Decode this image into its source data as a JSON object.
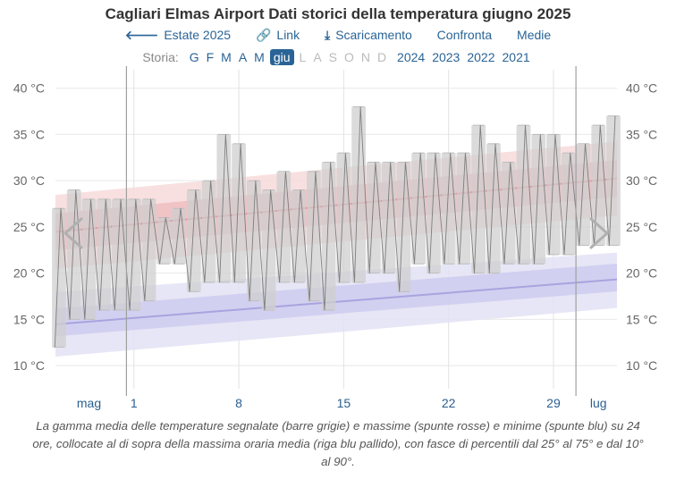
{
  "title": "Cagliari Elmas Airport Dati storici della temperatura giugno 2025",
  "toolbar": {
    "items": [
      {
        "icon": "arrow-left-icon",
        "glyph": "🡐",
        "label": "Estate 2025"
      },
      {
        "icon": "link-icon",
        "glyph": "🔗",
        "label": "Link"
      },
      {
        "icon": "download-icon",
        "glyph": "⤓",
        "label": "Scaricamento"
      },
      {
        "icon": "",
        "glyph": "",
        "label": "Confronta"
      },
      {
        "icon": "",
        "glyph": "",
        "label": "Medie"
      }
    ]
  },
  "history": {
    "label": "Storia:",
    "months": [
      {
        "label": "G",
        "state": "enabled"
      },
      {
        "label": "F",
        "state": "enabled"
      },
      {
        "label": "M",
        "state": "enabled"
      },
      {
        "label": "A",
        "state": "enabled"
      },
      {
        "label": "M",
        "state": "enabled"
      },
      {
        "label": "giu",
        "state": "active"
      },
      {
        "label": "L",
        "state": "disabled"
      },
      {
        "label": "A",
        "state": "disabled"
      },
      {
        "label": "S",
        "state": "disabled"
      },
      {
        "label": "O",
        "state": "disabled"
      },
      {
        "label": "N",
        "state": "disabled"
      },
      {
        "label": "D",
        "state": "disabled"
      }
    ],
    "years": [
      "2024",
      "2023",
      "2022",
      "2021"
    ]
  },
  "nav": {
    "prev_icon": "chevron-left-icon",
    "next_icon": "chevron-right-icon"
  },
  "caption": "La gamma media delle temperature segnalate (barre grigie) e massime (spunte rosse) e minime (spunte blu) su 24 ore, collocate al di sopra della massima oraria media (riga blu pallido), con fasce di percentili dal 25° al 75° e dal 10° al 90°.",
  "chart_data": {
    "type": "bar",
    "y_ticks": [
      "10 °C",
      "15 °C",
      "20 °C",
      "25 °C",
      "30 °C",
      "35 °C",
      "40 °C"
    ],
    "y_tick_values": [
      10,
      15,
      20,
      25,
      30,
      35,
      40
    ],
    "ylim": [
      7.5,
      42
    ],
    "x_range": [
      "2025-05-27",
      "2025-07-03"
    ],
    "x_ticks": [
      {
        "label": "mag",
        "date": "2025-05-29"
      },
      {
        "label": "1",
        "date": "2025-06-01"
      },
      {
        "label": "8",
        "date": "2025-06-08"
      },
      {
        "label": "15",
        "date": "2025-06-15"
      },
      {
        "label": "22",
        "date": "2025-06-22"
      },
      {
        "label": "29",
        "date": "2025-06-29"
      },
      {
        "label": "lug",
        "date": "2025-07-02"
      }
    ],
    "month_boundaries": [
      "2025-06-01",
      "2025-07-01"
    ],
    "grid": true,
    "daily_ranges": [
      {
        "date": "2025-05-27",
        "min": 12,
        "max": 27
      },
      {
        "date": "2025-05-28",
        "min": 15,
        "max": 29
      },
      {
        "date": "2025-05-29",
        "min": 15,
        "max": 28
      },
      {
        "date": "2025-05-30",
        "min": 16,
        "max": 28
      },
      {
        "date": "2025-05-31",
        "min": 16,
        "max": 28
      },
      {
        "date": "2025-06-01",
        "min": 16,
        "max": 28
      },
      {
        "date": "2025-06-02",
        "min": 17,
        "max": 28
      },
      {
        "date": "2025-06-03",
        "min": 21,
        "max": 26
      },
      {
        "date": "2025-06-04",
        "min": 21,
        "max": 27
      },
      {
        "date": "2025-06-05",
        "min": 18,
        "max": 29
      },
      {
        "date": "2025-06-06",
        "min": 19,
        "max": 30
      },
      {
        "date": "2025-06-07",
        "min": 19,
        "max": 35
      },
      {
        "date": "2025-06-08",
        "min": 19,
        "max": 34
      },
      {
        "date": "2025-06-09",
        "min": 17,
        "max": 30
      },
      {
        "date": "2025-06-10",
        "min": 16,
        "max": 29
      },
      {
        "date": "2025-06-11",
        "min": 19,
        "max": 31
      },
      {
        "date": "2025-06-12",
        "min": 19,
        "max": 29
      },
      {
        "date": "2025-06-13",
        "min": 17,
        "max": 31
      },
      {
        "date": "2025-06-14",
        "min": 16,
        "max": 32
      },
      {
        "date": "2025-06-15",
        "min": 19,
        "max": 33
      },
      {
        "date": "2025-06-16",
        "min": 19,
        "max": 38
      },
      {
        "date": "2025-06-17",
        "min": 20,
        "max": 32
      },
      {
        "date": "2025-06-18",
        "min": 20,
        "max": 32
      },
      {
        "date": "2025-06-19",
        "min": 18,
        "max": 32
      },
      {
        "date": "2025-06-20",
        "min": 21,
        "max": 33
      },
      {
        "date": "2025-06-21",
        "min": 20,
        "max": 33
      },
      {
        "date": "2025-06-22",
        "min": 21,
        "max": 33
      },
      {
        "date": "2025-06-23",
        "min": 21,
        "max": 33
      },
      {
        "date": "2025-06-24",
        "min": 20,
        "max": 36
      },
      {
        "date": "2025-06-25",
        "min": 20,
        "max": 34
      },
      {
        "date": "2025-06-26",
        "min": 21,
        "max": 32
      },
      {
        "date": "2025-06-27",
        "min": 21,
        "max": 36
      },
      {
        "date": "2025-06-28",
        "min": 21,
        "max": 35
      },
      {
        "date": "2025-06-29",
        "min": 22,
        "max": 35
      },
      {
        "date": "2025-06-30",
        "min": 22,
        "max": 33
      },
      {
        "date": "2025-07-01",
        "min": 23,
        "max": 34
      },
      {
        "date": "2025-07-02",
        "min": 23,
        "max": 36
      },
      {
        "date": "2025-07-03",
        "min": 23,
        "max": 37
      }
    ],
    "normals": {
      "dates": [
        "2025-05-27",
        "2025-07-03"
      ],
      "high_mean": [
        24.5,
        30.2
      ],
      "high_p25_p75": [
        [
          22.5,
          26.5
        ],
        [
          28.2,
          32.2
        ]
      ],
      "high_p10_p90": [
        [
          20.5,
          28.5
        ],
        [
          26.2,
          34.2
        ]
      ],
      "low_mean": [
        14.5,
        19.3
      ],
      "low_p25_p75": [
        [
          13.2,
          16.2
        ],
        [
          18.0,
          21.0
        ]
      ],
      "low_p10_p90": [
        [
          11.0,
          18.0
        ],
        [
          16.2,
          22.2
        ]
      ]
    },
    "colors": {
      "bar": "#cfcfcf",
      "trace": "#6e6e6e",
      "high_band_outer": "#f7dadb",
      "high_band_inner": "#efbdc0",
      "high_line": "#d98a92",
      "low_band_outer": "#e3e2f5",
      "low_band_inner": "#cecbef",
      "low_line": "#a9a3df",
      "grid": "#e8e8e8",
      "axis_text": "#666666",
      "x_axis_text": "#2a5f8f",
      "month_line": "#a0a0a0"
    }
  }
}
